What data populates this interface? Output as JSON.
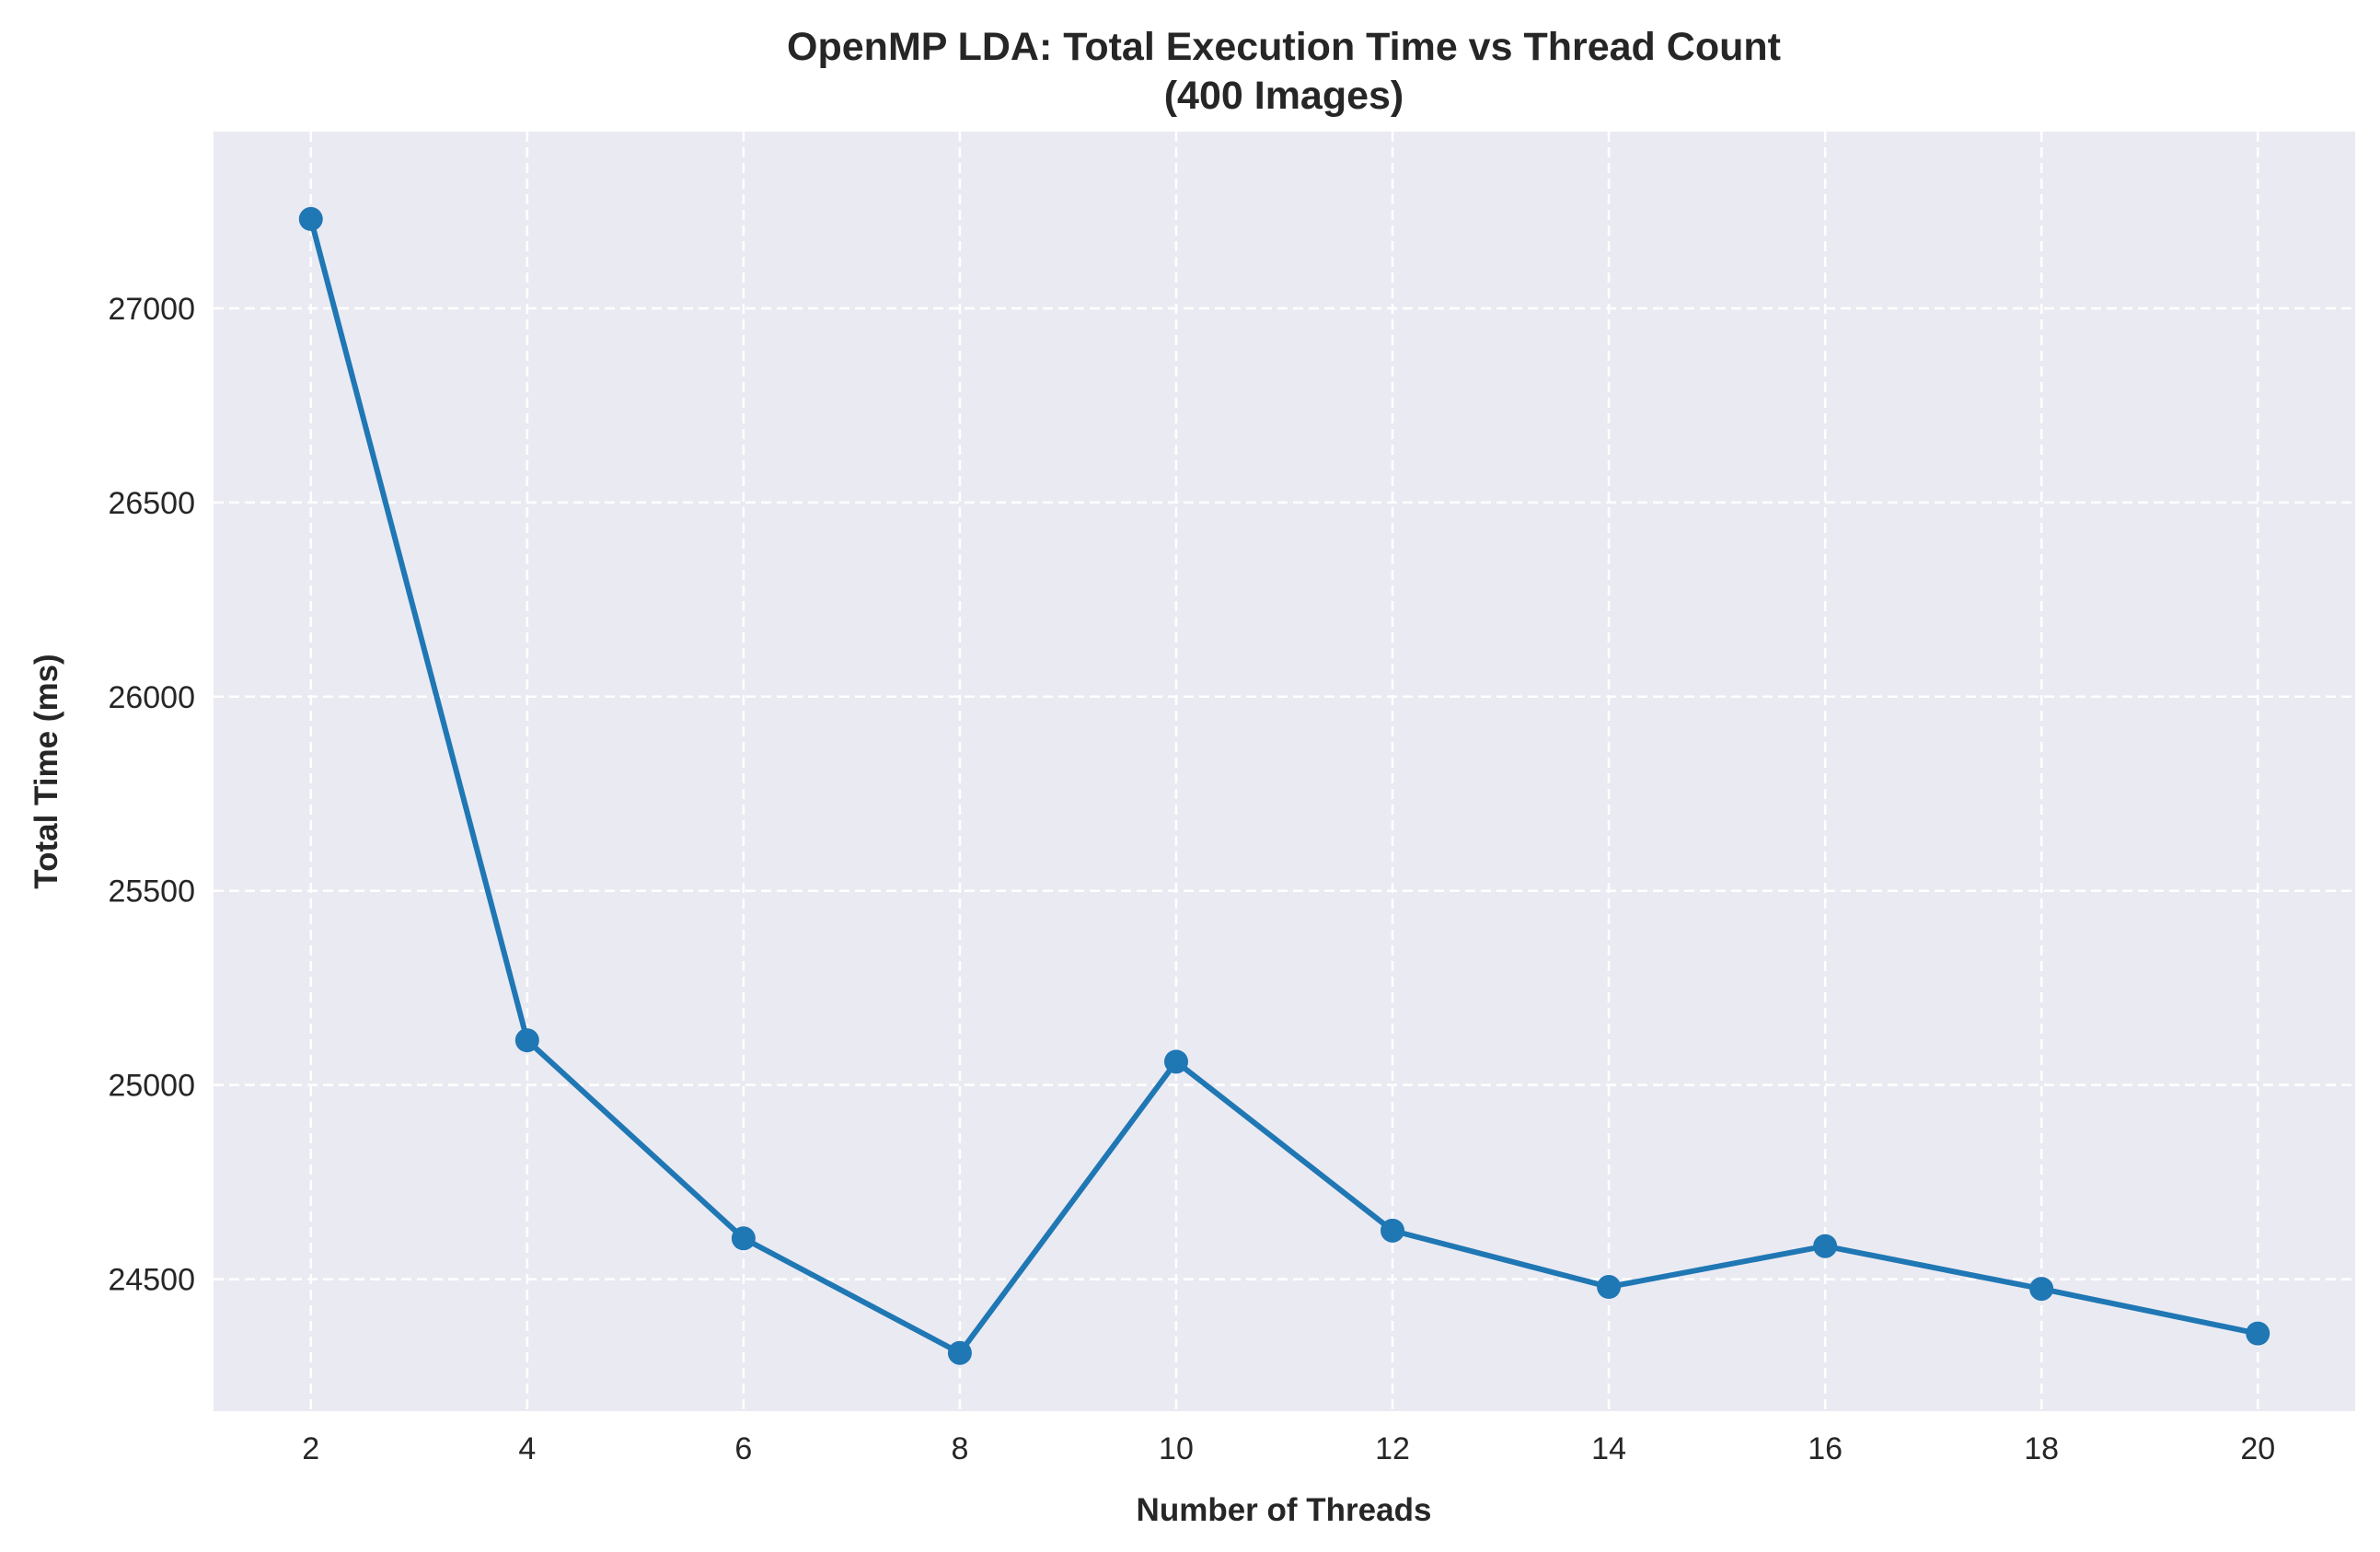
{
  "chart_data": {
    "type": "line",
    "title_lines": [
      "OpenMP LDA: Total Execution Time vs Thread Count",
      "(400 Images)"
    ],
    "xlabel": "Number of Threads",
    "ylabel": "Total Time (ms)",
    "x": [
      2,
      4,
      6,
      8,
      10,
      12,
      14,
      16,
      18,
      20
    ],
    "x_tick_labels": [
      "2",
      "4",
      "6",
      "8",
      "10",
      "12",
      "14",
      "16",
      "18",
      "20"
    ],
    "y_tick_values": [
      24500,
      25000,
      25500,
      26000,
      26500,
      27000
    ],
    "y_tick_labels": [
      "24500",
      "25000",
      "25500",
      "26000",
      "26500",
      "27000"
    ],
    "series": [
      {
        "values": [
          27230,
          25115,
          24605,
          24310,
          25060,
          24625,
          24480,
          24585,
          24475,
          24360
        ],
        "color": "#1f77b4",
        "marker": "circle"
      }
    ],
    "xlim": [
      1.1,
      20.9
    ],
    "ylim": [
      24160,
      27455
    ],
    "grid": true,
    "grid_style": "dashed",
    "plot_background": "#eaeaf2",
    "legend": "none"
  }
}
